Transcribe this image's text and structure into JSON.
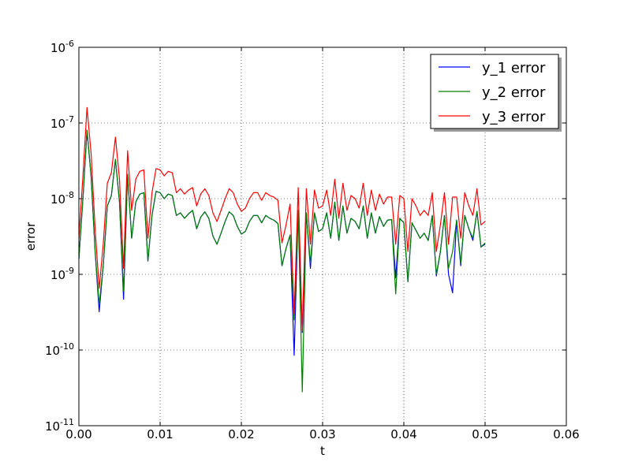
{
  "chart_data": {
    "type": "line",
    "xlabel": "t",
    "ylabel": "error",
    "x": [
      0,
      0.0005,
      0.001,
      0.0015,
      0.002,
      0.0025,
      0.003,
      0.0035,
      0.004,
      0.0045,
      0.005,
      0.0055,
      0.006,
      0.0065,
      0.007,
      0.0075,
      0.008,
      0.0085,
      0.009,
      0.0095,
      0.01,
      0.0105,
      0.011,
      0.0115,
      0.012,
      0.0125,
      0.013,
      0.0135,
      0.014,
      0.0145,
      0.015,
      0.0155,
      0.016,
      0.0165,
      0.017,
      0.0175,
      0.018,
      0.0185,
      0.019,
      0.0195,
      0.02,
      0.0205,
      0.021,
      0.0215,
      0.022,
      0.0225,
      0.023,
      0.0235,
      0.024,
      0.0245,
      0.025,
      0.0255,
      0.026,
      0.0265,
      0.027,
      0.0275,
      0.028,
      0.0285,
      0.029,
      0.0295,
      0.03,
      0.0305,
      0.031,
      0.0315,
      0.032,
      0.0325,
      0.033,
      0.0335,
      0.034,
      0.0345,
      0.035,
      0.0355,
      0.036,
      0.0365,
      0.037,
      0.0375,
      0.038,
      0.0385,
      0.039,
      0.0395,
      0.04,
      0.0405,
      0.041,
      0.0415,
      0.042,
      0.0425,
      0.043,
      0.0435,
      0.044,
      0.0445,
      0.045,
      0.0455,
      0.046,
      0.0465,
      0.047,
      0.0475,
      0.048,
      0.0485,
      0.049,
      0.0495,
      0.05
    ],
    "series": [
      {
        "name": "y_1 error",
        "color": "#0000ff",
        "values": [
          1.6e-09,
          1e-08,
          8e-08,
          2e-08,
          2e-09,
          3.2e-10,
          1.3e-09,
          8e-09,
          1.1e-08,
          3.3e-08,
          9e-09,
          4.7e-10,
          2.1e-08,
          3e-09,
          9e-09,
          1.15e-08,
          1.2e-08,
          1.5e-09,
          6e-09,
          1.25e-08,
          1.2e-08,
          1e-08,
          1.15e-08,
          1.1e-08,
          6e-09,
          6.5e-09,
          5.5e-09,
          6.3e-09,
          7e-09,
          4e-09,
          5.7e-09,
          6.7e-09,
          5.5e-09,
          3.2e-09,
          2.5e-09,
          3.5e-09,
          5e-09,
          6.7e-09,
          6e-09,
          4.3e-09,
          3.4e-09,
          3.7e-09,
          5e-09,
          6e-09,
          6e-09,
          4.8e-09,
          6e-09,
          5.5e-09,
          5.2e-09,
          4.7e-09,
          1.3e-09,
          2.2e-09,
          3.3e-09,
          8.5e-11,
          7e-09,
          1.7e-10,
          6.5e-09,
          1.2e-09,
          6.5e-09,
          3.7e-09,
          4e-09,
          6.5e-09,
          3e-09,
          9e-09,
          2.8e-09,
          8e-09,
          3.5e-09,
          5.5e-09,
          5e-09,
          4e-09,
          8e-09,
          3e-09,
          6.5e-09,
          3.5e-09,
          5.8e-09,
          4.3e-09,
          5.2e-09,
          5.3e-09,
          9e-10,
          5.5e-09,
          4.8e-09,
          8e-10,
          4.8e-09,
          3.8e-09,
          3e-09,
          3.5e-09,
          2.8e-09,
          6e-09,
          9.5e-10,
          2e-09,
          6e-09,
          1e-09,
          5.7e-10,
          5.2e-09,
          1.3e-09,
          6e-09,
          4e-09,
          2.8e-09,
          6.8e-09,
          2.3e-09,
          2.5e-09
        ]
      },
      {
        "name": "y_2 error",
        "color": "#008000",
        "values": [
          1.6e-09,
          1e-08,
          8e-08,
          2e-08,
          2e-09,
          4e-10,
          1.3e-09,
          8e-09,
          1.1e-08,
          3.3e-08,
          9e-09,
          6e-10,
          2.1e-08,
          3e-09,
          9e-09,
          1.15e-08,
          1.2e-08,
          1.5e-09,
          6e-09,
          1.25e-08,
          1.2e-08,
          1e-08,
          1.15e-08,
          1.1e-08,
          6e-09,
          6.5e-09,
          5.5e-09,
          6.3e-09,
          7e-09,
          4e-09,
          5.7e-09,
          6.7e-09,
          5.5e-09,
          3.2e-09,
          2.5e-09,
          3.5e-09,
          5e-09,
          6.7e-09,
          6e-09,
          4.3e-09,
          3.4e-09,
          3.7e-09,
          5e-09,
          6e-09,
          6e-09,
          4.8e-09,
          6e-09,
          5.5e-09,
          5.2e-09,
          4.7e-09,
          1.3e-09,
          2.2e-09,
          3.3e-09,
          2.5e-10,
          7e-09,
          2.8e-11,
          6.5e-09,
          1.4e-09,
          6.5e-09,
          3.7e-09,
          4e-09,
          6.5e-09,
          3e-09,
          9e-09,
          2.8e-09,
          8e-09,
          3.5e-09,
          5.5e-09,
          5e-09,
          4e-09,
          8e-09,
          3e-09,
          6.5e-09,
          3.5e-09,
          5.8e-09,
          4.3e-09,
          5.2e-09,
          5.3e-09,
          5.5e-10,
          5.5e-09,
          4.8e-09,
          8e-10,
          4.8e-09,
          3.8e-09,
          3e-09,
          3.5e-09,
          2.8e-09,
          6e-09,
          1e-09,
          2e-09,
          6e-09,
          1.2e-09,
          2e-09,
          5.2e-09,
          1.4e-09,
          6e-09,
          4e-09,
          3e-09,
          6.8e-09,
          2.3e-09,
          2.6e-09
        ]
      },
      {
        "name": "y_3 error",
        "color": "#ff0000",
        "values": [
          3e-09,
          2e-08,
          1.6e-07,
          4e-08,
          4e-09,
          6.5e-10,
          2.5e-09,
          1.6e-08,
          2.2e-08,
          6.5e-08,
          1.8e-08,
          1.2e-09,
          4.3e-08,
          7e-09,
          1.8e-08,
          2.3e-08,
          2.4e-08,
          3e-09,
          1.2e-08,
          2.5e-08,
          2.4e-08,
          2e-08,
          2.3e-08,
          2.2e-08,
          1.2e-08,
          1.35e-08,
          1.15e-08,
          1.3e-08,
          1.4e-08,
          8e-09,
          1.15e-08,
          1.35e-08,
          1.1e-08,
          6.5e-09,
          5e-09,
          7e-09,
          1e-08,
          1.35e-08,
          1.2e-08,
          8.5e-09,
          6.8e-09,
          7.5e-09,
          1e-08,
          1.2e-08,
          1.2e-08,
          9.5e-09,
          1.2e-08,
          1.1e-08,
          1.05e-08,
          9.5e-09,
          2.6e-09,
          4.5e-09,
          8.5e-09,
          3e-10,
          1.4e-08,
          1.8e-10,
          1.35e-08,
          2.5e-09,
          1.3e-08,
          7.5e-09,
          8e-09,
          1.3e-08,
          6e-09,
          1.8e-08,
          5.5e-09,
          1.6e-08,
          7e-09,
          1.1e-08,
          1e-08,
          7.5e-09,
          1.6e-08,
          6e-09,
          1.3e-08,
          7e-09,
          1.15e-08,
          8.5e-09,
          1.05e-08,
          1.05e-08,
          2.5e-09,
          1.1e-08,
          1e-08,
          2e-09,
          1e-08,
          8e-09,
          6e-09,
          7e-09,
          6e-09,
          1.2e-08,
          2e-09,
          4.5e-09,
          1.2e-08,
          2.5e-09,
          1.05e-08,
          1.05e-08,
          3e-09,
          1.2e-08,
          8e-09,
          6e-09,
          1.35e-08,
          4.5e-09,
          5e-09
        ]
      }
    ],
    "xlim": [
      0,
      0.06
    ],
    "xticks": [
      {
        "value": 0,
        "label": "0.00"
      },
      {
        "value": 0.01,
        "label": "0.01"
      },
      {
        "value": 0.02,
        "label": "0.02"
      },
      {
        "value": 0.03,
        "label": "0.03"
      },
      {
        "value": 0.04,
        "label": "0.04"
      },
      {
        "value": 0.05,
        "label": "0.05"
      },
      {
        "value": 0.06,
        "label": "0.06"
      }
    ],
    "ylim": [
      1e-11,
      1e-06
    ],
    "yscale": "log",
    "yticks": [
      {
        "value": 1e-11,
        "label": "10^-11"
      },
      {
        "value": 1e-10,
        "label": "10^-10"
      },
      {
        "value": 1e-09,
        "label": "10^-9"
      },
      {
        "value": 1e-08,
        "label": "10^-8"
      },
      {
        "value": 1e-07,
        "label": "10^-7"
      },
      {
        "value": 1e-06,
        "label": "10^-6"
      }
    ],
    "grid": true,
    "legend": "upper right"
  }
}
